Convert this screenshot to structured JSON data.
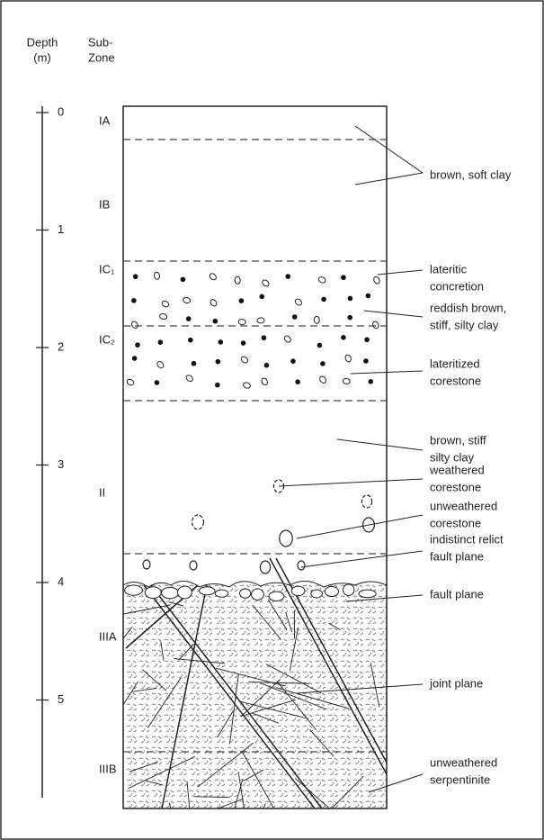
{
  "header": {
    "depth": [
      "Depth",
      "(m)"
    ],
    "subzone": [
      "Sub-",
      "Zone"
    ]
  },
  "depth_ticks": [
    "0",
    "1",
    "2",
    "3",
    "4",
    "5"
  ],
  "zones": [
    "IA",
    "IB",
    "IC₁",
    "IC₂",
    "II",
    "IIIA",
    "IIIB"
  ],
  "annotations": [
    {
      "lines": [
        "brown, soft clay"
      ]
    },
    {
      "lines": [
        "lateritic",
        "concretion"
      ]
    },
    {
      "lines": [
        "reddish brown,",
        "stiff, silty clay"
      ]
    },
    {
      "lines": [
        "lateritized",
        "corestone"
      ]
    },
    {
      "lines": [
        "brown, stiff",
        "silty clay"
      ]
    },
    {
      "lines": [
        "weathered",
        "corestone"
      ]
    },
    {
      "lines": [
        "unweathered",
        "corestone"
      ]
    },
    {
      "lines": [
        "indistinct relict",
        "fault plane"
      ]
    },
    {
      "lines": [
        "fault plane"
      ]
    },
    {
      "lines": [
        "joint plane"
      ]
    },
    {
      "lines": [
        "unweathered",
        "serpentinite"
      ]
    }
  ]
}
